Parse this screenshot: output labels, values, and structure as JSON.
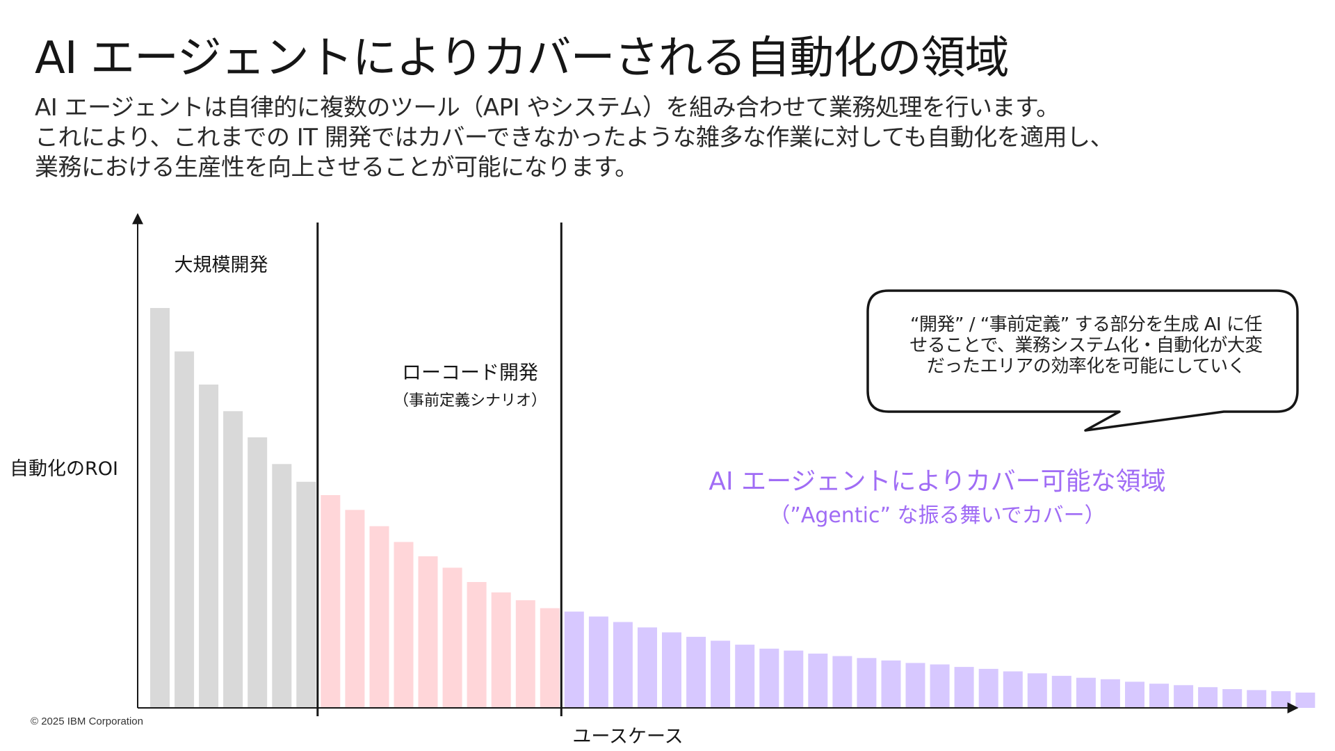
{
  "title": "AI エージェントによりカバーされる自動化の領域",
  "subtitle": {
    "line1": "AI エージェントは自律的に複数のツール（API やシステム）を組み合わせて業務処理を行います。",
    "line2": "これにより、これまでの IT 開発ではカバーできなかったような雑多な作業に対しても自動化を適用し、",
    "line3": "業務における生産性を向上させることが可能になります。"
  },
  "callout": {
    "line1": "“開発” / “事前定義” する部分を生成 AI に任",
    "line2": "せることで、業務システム化・自動化が大変",
    "line3": "だったエリアの効率化を可能にしていく"
  },
  "copyright": "© 2025 IBM Corporation",
  "chart_data": {
    "type": "bar",
    "xlabel": "ユースケース",
    "ylabel": "自動化のROI",
    "ylim": [
      0,
      100
    ],
    "grid": false,
    "legend": "none",
    "regions": [
      {
        "name": "大規模開発",
        "sublabel": "",
        "color": "#d9d9d9",
        "label_color": "#161616",
        "values": [
          81,
          72.2,
          65.5,
          60.1,
          54.8,
          49.4,
          45.8
        ]
      },
      {
        "name": "ローコード開発",
        "sublabel": "（事前定義シナリオ）",
        "color": "#ffd6d9",
        "label_color": "#161616",
        "values": [
          43.1,
          40.1,
          36.8,
          33.6,
          30.7,
          28.4,
          25.5,
          23.4,
          21.8,
          20.2
        ]
      },
      {
        "name": "AI エージェントによりカバー可能な領域",
        "sublabel": "（”Agentic” な振る舞いでカバー）",
        "color": "#d7c8ff",
        "label_color": "#a06cf5",
        "values": [
          19.5,
          18.5,
          17.4,
          16.3,
          15.3,
          14.4,
          13.6,
          12.8,
          12.0,
          11.6,
          11.0,
          10.5,
          10.1,
          9.6,
          9.1,
          8.8,
          8.3,
          7.9,
          7.4,
          7.0,
          6.5,
          6.1,
          5.8,
          5.3,
          4.9,
          4.6,
          4.2,
          3.8,
          3.6,
          3.4,
          3.1
        ]
      }
    ]
  }
}
